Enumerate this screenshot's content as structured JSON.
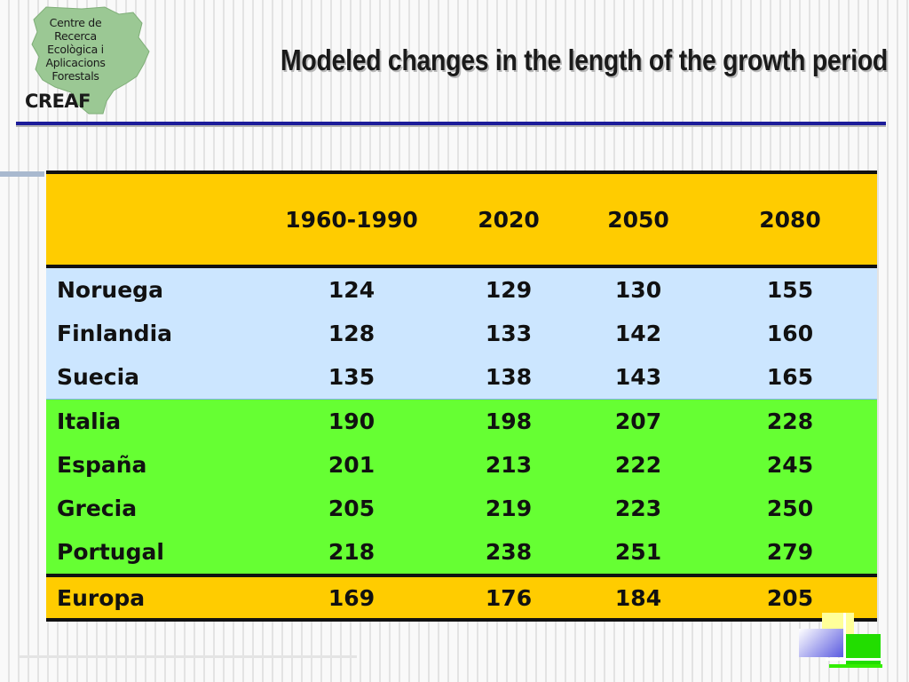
{
  "logo": {
    "lines": [
      "Centre de",
      "Recerca",
      "Ecològica i",
      "Aplicacions",
      "Forestals"
    ],
    "brand": "CREAF",
    "map_color": "#9bc894"
  },
  "slide": {
    "title": "Modeled changes in the length of the growth period"
  },
  "colors": {
    "header_bg": "#ffcc00",
    "nordic_bg": "#cce6ff",
    "south_bg": "#66ff33",
    "europe_bg": "#ffcc00",
    "rule": "#1c1c9a"
  },
  "table": {
    "columns": [
      "",
      "1960-1990",
      "2020",
      "2050",
      "2080"
    ],
    "rows": [
      {
        "country": "Noruega",
        "values": [
          "124",
          "129",
          "130",
          "155"
        ]
      },
      {
        "country": "Finlandia",
        "values": [
          "128",
          "133",
          "142",
          "160"
        ]
      },
      {
        "country": "Suecia",
        "values": [
          "135",
          "138",
          "143",
          "165"
        ]
      },
      {
        "country": "Italia",
        "values": [
          "190",
          "198",
          "207",
          "228"
        ]
      },
      {
        "country": "España",
        "values": [
          "201",
          "213",
          "222",
          "245"
        ]
      },
      {
        "country": "Grecia",
        "values": [
          "205",
          "219",
          "223",
          "250"
        ]
      },
      {
        "country": "Portugal",
        "values": [
          "218",
          "238",
          "251",
          "279"
        ]
      }
    ],
    "total": {
      "country": "Europa",
      "values": [
        "169",
        "176",
        "184",
        "205"
      ]
    }
  }
}
